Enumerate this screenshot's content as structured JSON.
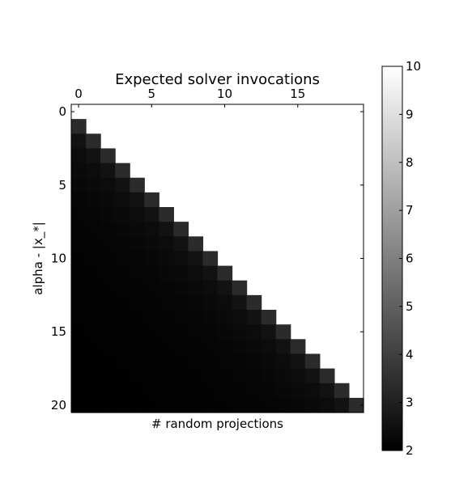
{
  "chart_data": {
    "type": "heatmap",
    "title": "Expected solver invocations",
    "xlabel": "# random projections",
    "ylabel": "alpha - |x_*|",
    "n_rows": 21,
    "n_cols": 20,
    "x_ticks": [
      "0",
      "5",
      "10",
      "15"
    ],
    "x_tick_values": [
      0,
      5,
      10,
      15
    ],
    "y_ticks": [
      "0",
      "5",
      "10",
      "15",
      "20"
    ],
    "y_tick_values": [
      0,
      5,
      10,
      15,
      20
    ],
    "colormap": "gray",
    "color_range": [
      2,
      10
    ],
    "colorbar_ticks": [
      "2",
      "3",
      "4",
      "5",
      "6",
      "7",
      "8",
      "9",
      "10"
    ],
    "colorbar_tick_values": [
      2,
      3,
      4,
      5,
      6,
      7,
      8,
      9,
      10
    ],
    "empty_region": "upper-right triangle (column >= row) is blank/white",
    "values_by_diagonal_offset": {
      "description": "cell value depends on offset k = row - col (k >= 1)",
      "k": [
        1,
        2,
        3,
        4,
        5,
        6,
        7,
        8,
        9,
        10,
        11,
        12,
        13,
        14,
        15,
        16,
        17,
        18,
        19,
        20
      ],
      "value": [
        3.35,
        2.55,
        2.38,
        2.3,
        2.25,
        2.2,
        2.17,
        2.14,
        2.12,
        2.1,
        2.08,
        2.07,
        2.06,
        2.05,
        2.04,
        2.03,
        2.02,
        2.02,
        2.01,
        2.0
      ]
    }
  },
  "colors": {
    "background": "#ffffff",
    "empty_cell": "#ffffff",
    "axis": "#000000"
  }
}
